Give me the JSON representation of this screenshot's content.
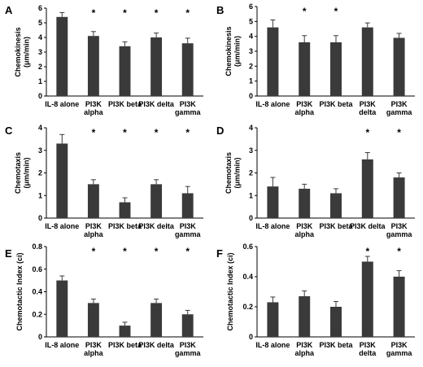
{
  "chart_data": [
    {
      "panel": "A",
      "type": "bar",
      "ylabel": "Chemokinesis",
      "yunit": "(μm/min)",
      "ylim": [
        0,
        6
      ],
      "yticks": [
        "0",
        "1",
        "2",
        "3",
        "4",
        "5",
        "6"
      ],
      "categories": [
        [
          "IL-8 alone"
        ],
        [
          "PI3K",
          "alpha"
        ],
        [
          "PI3K beta"
        ],
        [
          "PI3K delta"
        ],
        [
          "PI3K",
          "gamma"
        ]
      ],
      "values": [
        5.4,
        4.1,
        3.4,
        4.0,
        3.6
      ],
      "errors": [
        0.3,
        0.3,
        0.3,
        0.3,
        0.35
      ],
      "significant": [
        false,
        true,
        true,
        true,
        true
      ],
      "star": "*",
      "bar_color": "#3a3a3a"
    },
    {
      "panel": "B",
      "type": "bar",
      "ylabel": "Chemokinesis",
      "yunit": "(μm/min)",
      "ylim": [
        0,
        6
      ],
      "yticks": [
        "0",
        "1",
        "2",
        "3",
        "4",
        "5",
        "6"
      ],
      "categories": [
        [
          "IL-8 alone"
        ],
        [
          "PI3K",
          "alpha"
        ],
        [
          "PI3K beta"
        ],
        [
          "PI3K",
          "delta"
        ],
        [
          "PI3K",
          "gamma"
        ]
      ],
      "values": [
        4.6,
        3.6,
        3.6,
        4.6,
        3.9
      ],
      "errors": [
        0.5,
        0.45,
        0.45,
        0.3,
        0.3
      ],
      "significant": [
        false,
        true,
        true,
        false,
        false
      ],
      "star": "*",
      "bar_color": "#3a3a3a"
    },
    {
      "panel": "C",
      "type": "bar",
      "ylabel": "Chemotaxis",
      "yunit": "(μm/min)",
      "ylim": [
        0,
        4
      ],
      "yticks": [
        "0",
        "1",
        "2",
        "3",
        "4"
      ],
      "categories": [
        [
          "IL-8 alone"
        ],
        [
          "PI3K",
          "alpha"
        ],
        [
          "PI3K beta"
        ],
        [
          "PI3K delta"
        ],
        [
          "PI3K",
          "gamma"
        ]
      ],
      "values": [
        3.3,
        1.5,
        0.7,
        1.5,
        1.1
      ],
      "errors": [
        0.4,
        0.2,
        0.2,
        0.2,
        0.3
      ],
      "significant": [
        false,
        true,
        true,
        true,
        true
      ],
      "star": "*",
      "bar_color": "#3a3a3a"
    },
    {
      "panel": "D",
      "type": "bar",
      "ylabel": "Chemotaxis",
      "yunit": "(μm/min)",
      "ylim": [
        0,
        4
      ],
      "yticks": [
        "0",
        "1",
        "2",
        "3",
        "4"
      ],
      "categories": [
        [
          "IL-8 alone"
        ],
        [
          "PI3K",
          "alpha"
        ],
        [
          "PI3K beta"
        ],
        [
          "PI3K delta"
        ],
        [
          "PI3K",
          "gamma"
        ]
      ],
      "values": [
        1.4,
        1.3,
        1.1,
        2.6,
        1.8
      ],
      "errors": [
        0.4,
        0.2,
        0.2,
        0.3,
        0.2
      ],
      "significant": [
        false,
        false,
        false,
        true,
        true
      ],
      "star": "*",
      "bar_color": "#3a3a3a"
    },
    {
      "panel": "E",
      "type": "bar",
      "ylabel": "Chemotactic Index (ci)",
      "yunit": "",
      "ylim": [
        0,
        0.8
      ],
      "yticks": [
        "0",
        "0.2",
        "0.4",
        "0.6",
        "0.8"
      ],
      "categories": [
        [
          "IL-8 alone"
        ],
        [
          "PI3K",
          "alpha"
        ],
        [
          "PI3K beta"
        ],
        [
          "PI3K delta"
        ],
        [
          "PI3K",
          "gamma"
        ]
      ],
      "values": [
        0.5,
        0.3,
        0.1,
        0.3,
        0.2
      ],
      "errors": [
        0.04,
        0.035,
        0.03,
        0.035,
        0.035
      ],
      "significant": [
        false,
        true,
        true,
        true,
        true
      ],
      "star": "*",
      "bar_color": "#3a3a3a"
    },
    {
      "panel": "F",
      "type": "bar",
      "ylabel": "Chemotactic Index (ci)",
      "yunit": "",
      "ylim": [
        0,
        0.6
      ],
      "yticks": [
        "0",
        "0.2",
        "0.4",
        "0.6"
      ],
      "categories": [
        [
          "IL-8 alone"
        ],
        [
          "PI3K",
          "alpha"
        ],
        [
          "PI3K beta"
        ],
        [
          "PI3K",
          "delta"
        ],
        [
          "PI3K",
          "gamma"
        ]
      ],
      "values": [
        0.23,
        0.27,
        0.2,
        0.5,
        0.4
      ],
      "errors": [
        0.035,
        0.035,
        0.035,
        0.035,
        0.04
      ],
      "significant": [
        false,
        false,
        false,
        true,
        true
      ],
      "star": "*",
      "bar_color": "#3a3a3a"
    }
  ]
}
